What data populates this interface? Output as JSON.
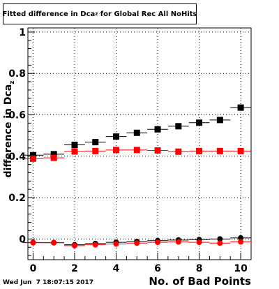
{
  "title": {
    "prefix": "Fitted difference in Dca",
    "subscript": "z",
    "suffix": " for Global Rec All NoHits"
  },
  "ylabel": {
    "text": "difference in Dca",
    "subscript": "z"
  },
  "xlabel": "No. of Bad Points",
  "timestamp": "Wed Jun  7 18:07:15 2017",
  "chart_data": {
    "type": "scatter",
    "xlabel": "No. of Bad Points",
    "ylabel": "difference in Dca_z",
    "title": "Fitted difference in Dca_z for Global Rec All NoHits",
    "xlim": [
      -0.25,
      10.5
    ],
    "ylim": [
      -0.1,
      1.02
    ],
    "x_ticks": [
      0,
      2,
      4,
      6,
      8,
      10
    ],
    "y_ticks": [
      0,
      0.2,
      0.4,
      0.6,
      0.8,
      1
    ],
    "grid": true,
    "x": [
      0,
      1,
      2,
      3,
      4,
      5,
      6,
      7,
      8,
      9,
      10
    ],
    "series": [
      {
        "marker": "square",
        "color": "#000000",
        "values": [
          0.405,
          0.41,
          0.455,
          0.468,
          0.495,
          0.513,
          0.53,
          0.545,
          0.562,
          0.575,
          0.635
        ]
      },
      {
        "marker": "square",
        "color": "#ff0000",
        "values": [
          0.388,
          0.392,
          0.423,
          0.425,
          0.43,
          0.43,
          0.428,
          0.422,
          0.425,
          0.425,
          0.425
        ]
      },
      {
        "marker": "circle",
        "color": "#000000",
        "values": [
          -0.017,
          -0.018,
          -0.028,
          -0.022,
          -0.016,
          -0.012,
          -0.008,
          -0.005,
          -0.003,
          0.0,
          0.005
        ]
      },
      {
        "marker": "circle",
        "color": "#ff0000",
        "values": [
          -0.018,
          -0.017,
          -0.032,
          -0.028,
          -0.024,
          -0.02,
          -0.016,
          -0.014,
          -0.016,
          -0.02,
          -0.014
        ]
      }
    ]
  }
}
